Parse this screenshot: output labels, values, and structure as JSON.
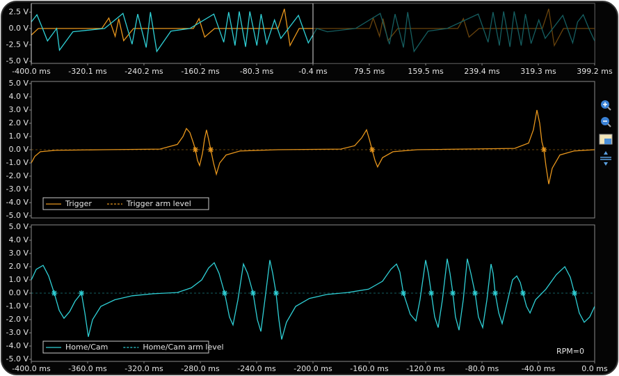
{
  "chart_data": [
    {
      "type": "line",
      "xlim": [
        -400.0,
        399.2
      ],
      "ylim": [
        -5.0,
        3.5
      ],
      "xticks": [
        {
          "value": -400.0,
          "label": "-400.0 ms"
        },
        {
          "value": -320.1,
          "label": "-320.1 ms"
        },
        {
          "value": -240.2,
          "label": "-240.2 ms"
        },
        {
          "value": -160.2,
          "label": "-160.2 ms"
        },
        {
          "value": -80.3,
          "label": "-80.3 ms"
        },
        {
          "value": -0.4,
          "label": "-0.4 ms"
        },
        {
          "value": 79.5,
          "label": "79.5 ms"
        },
        {
          "value": 159.5,
          "label": "159.5 ms"
        },
        {
          "value": 239.4,
          "label": "239.4 ms"
        },
        {
          "value": 319.3,
          "label": "319.3 ms"
        },
        {
          "value": 399.2,
          "label": "399.2 ms"
        }
      ],
      "yticks": [
        {
          "value": 2.5,
          "label": "2.5 V"
        },
        {
          "value": 0.0,
          "label": "0.0 V"
        },
        {
          "value": -2.5,
          "label": "-2.5 V"
        },
        {
          "value": -5.0,
          "label": "-5.0 V"
        }
      ],
      "zoom_window": [
        -400.0,
        -0.4
      ],
      "series": [
        {
          "color": "#e8961c",
          "x": [
            -400,
            -390,
            -300,
            -290,
            -281,
            -276,
            -269,
            -255,
            -170,
            -162,
            -154,
            -140,
            -50,
            -41,
            -33,
            -20,
            80,
            85,
            94,
            99,
            106,
            120,
            205,
            213,
            221,
            235,
            325,
            334,
            342,
            355,
            399.2
          ],
          "values": [
            -1,
            0,
            0,
            1.6,
            -1.2,
            1.5,
            -1.85,
            0,
            0,
            1.5,
            -1.3,
            0,
            0,
            3.0,
            -2.6,
            0,
            0,
            1.6,
            -1.2,
            1.5,
            -1.85,
            0,
            0,
            1.5,
            -1.3,
            0,
            0,
            3.0,
            -2.6,
            0,
            0
          ]
        },
        {
          "color": "#2fd0d6",
          "x": [
            -400,
            -392,
            -384,
            -377,
            -364,
            -360,
            -341,
            -296,
            -270,
            -257,
            -249,
            -237,
            -231,
            -222,
            -202,
            -175,
            -141,
            -127,
            -120,
            -111,
            -105,
            -96,
            -90,
            -80,
            -74,
            -66,
            -55,
            -46,
            -21,
            -7,
            5,
            20,
            60,
            95,
            108,
            116,
            128,
            134,
            143,
            163,
            190,
            234,
            248,
            255,
            264,
            270,
            279,
            285,
            295,
            301,
            309,
            320,
            329,
            354,
            368,
            375,
            383,
            391,
            399.2
          ],
          "values": [
            1,
            2.1,
            0,
            -1.9,
            0,
            -3.3,
            -0.5,
            0,
            2.3,
            -2.4,
            2.2,
            -2.9,
            2.5,
            -3.5,
            -0.4,
            0,
            2.2,
            -2.1,
            2.5,
            -2.6,
            2.6,
            -2.8,
            2.6,
            -2.6,
            2.2,
            -2.3,
            1.3,
            -1.5,
            2.0,
            -2.2,
            0,
            -0.5,
            0,
            2.3,
            -2.4,
            2.2,
            -2.9,
            2.5,
            -3.5,
            -0.4,
            0,
            2.2,
            -2.1,
            2.5,
            -2.6,
            2.6,
            -2.8,
            2.6,
            -2.6,
            2.2,
            -2.3,
            1.3,
            -1.5,
            2.0,
            -2.2,
            1.0,
            2.1,
            0,
            -1.9
          ]
        }
      ]
    },
    {
      "type": "line",
      "xlim": [
        -400.0,
        0.0
      ],
      "ylim": [
        -5.0,
        5.0
      ],
      "yticks": [
        {
          "value": 5.0,
          "label": "5.0 V"
        },
        {
          "value": 4.0,
          "label": "4.0 V"
        },
        {
          "value": 3.0,
          "label": "3.0 V"
        },
        {
          "value": 2.0,
          "label": "2.0 V"
        },
        {
          "value": 1.0,
          "label": "1.0 V"
        },
        {
          "value": 0.0,
          "label": "0.0 V"
        },
        {
          "value": -1.0,
          "label": "-1.0 V"
        },
        {
          "value": -2.0,
          "label": "-2.0 V"
        },
        {
          "value": -3.0,
          "label": "-3.0 V"
        },
        {
          "value": -4.0,
          "label": "-4.0 V"
        },
        {
          "value": -5.0,
          "label": "-5.0 V"
        }
      ],
      "legend": "lower left",
      "series": [
        {
          "name": "Trigger",
          "color": "#e8961c",
          "x": [
            -400.0,
            -397.5,
            -393.6,
            -382.7,
            -348.1,
            -308.6,
            -296.3,
            -292.3,
            -289.9,
            -287.4,
            -284.9,
            -283.5,
            -282.0,
            -280.5,
            -278.5,
            -277.0,
            -275.6,
            -274.1,
            -272.6,
            -270.6,
            -268.6,
            -266.2,
            -261.7,
            -251.9,
            -224.7,
            -180.2,
            -170.4,
            -165.4,
            -162.0,
            -160.0,
            -158.0,
            -156.0,
            -154.1,
            -150.6,
            -143.2,
            -125.9,
            -56.8,
            -46.9,
            -43.5,
            -41.0,
            -39.0,
            -37.5,
            -36.0,
            -34.6,
            -32.6,
            -30.1,
            -24.7,
            -14.8,
            0.0
          ],
          "values": [
            -1.0,
            -0.5,
            -0.15,
            -0.05,
            0,
            0.05,
            0.4,
            1.0,
            1.6,
            1.3,
            0.5,
            0,
            -0.8,
            -1.2,
            -0.3,
            0.8,
            1.5,
            0.8,
            0,
            -1.0,
            -1.85,
            -1.0,
            -0.4,
            -0.1,
            0,
            0.05,
            0.3,
            0.9,
            1.5,
            0.8,
            0,
            -0.8,
            -1.3,
            -0.6,
            -0.15,
            0,
            0.1,
            0.5,
            1.5,
            3.0,
            2.0,
            0.6,
            0,
            -1.2,
            -2.6,
            -1.4,
            -0.4,
            -0.1,
            0
          ]
        },
        {
          "name": "Trigger arm level",
          "color": "#e8961c",
          "dash": true,
          "x": [
            -400.0,
            0.0
          ],
          "values": [
            0,
            0
          ]
        }
      ],
      "edges": {
        "color": "#e8961c",
        "x": [
          -283.5,
          -272.6,
          -158.0,
          -36.0
        ],
        "values": [
          0,
          0,
          0,
          0
        ]
      }
    },
    {
      "type": "line",
      "xlim": [
        -400.0,
        0.0
      ],
      "ylim": [
        -5.0,
        5.0
      ],
      "xticks": [
        {
          "value": -400.0,
          "label": "-400.0 ms"
        },
        {
          "value": -360.0,
          "label": "-360.0 ms"
        },
        {
          "value": -320.0,
          "label": "-320.0 ms"
        },
        {
          "value": -280.0,
          "label": "-280.0 ms"
        },
        {
          "value": -240.0,
          "label": "-240.0 ms"
        },
        {
          "value": -200.0,
          "label": "-200.0 ms"
        },
        {
          "value": -160.0,
          "label": "-160.0 ms"
        },
        {
          "value": -120.0,
          "label": "-120.0 ms"
        },
        {
          "value": -80.0,
          "label": "-80.0 ms"
        },
        {
          "value": -40.0,
          "label": "-40.0 ms"
        },
        {
          "value": 0.0,
          "label": "0.0 ms"
        }
      ],
      "yticks": [
        {
          "value": 5.0,
          "label": "5.0 V"
        },
        {
          "value": 4.0,
          "label": "4.0 V"
        },
        {
          "value": 3.0,
          "label": "3.0 V"
        },
        {
          "value": 2.0,
          "label": "2.0 V"
        },
        {
          "value": 1.0,
          "label": "1.0 V"
        },
        {
          "value": 0.0,
          "label": "0.0 V"
        },
        {
          "value": -1.0,
          "label": "-1.0 V"
        },
        {
          "value": -2.0,
          "label": "-2.0 V"
        },
        {
          "value": -3.0,
          "label": "-3.0 V"
        },
        {
          "value": -4.0,
          "label": "-4.0 V"
        },
        {
          "value": -5.0,
          "label": "-5.0 V"
        }
      ],
      "legend": "lower left",
      "annotation": "RPM=0",
      "series": [
        {
          "name": "Home/Cam",
          "color": "#2fd0d6",
          "x": [
            -400.0,
            -396.5,
            -391.6,
            -387.7,
            -383.7,
            -380.2,
            -376.8,
            -372.8,
            -368.9,
            -364.4,
            -362.0,
            -359.5,
            -356.5,
            -350.6,
            -340.7,
            -328.4,
            -313.6,
            -296.3,
            -286.4,
            -279.0,
            -274.1,
            -270.1,
            -266.7,
            -262.7,
            -259.3,
            -256.8,
            -253.3,
            -249.4,
            -246.4,
            -242.5,
            -239.5,
            -237.0,
            -234.1,
            -230.6,
            -228.6,
            -226.2,
            -224.2,
            -222.2,
            -218.8,
            -212.3,
            -202.5,
            -190.1,
            -175.3,
            -160.5,
            -150.6,
            -144.7,
            -140.7,
            -138.3,
            -135.8,
            -130.9,
            -126.9,
            -124.0,
            -120.0,
            -118.0,
            -116.0,
            -113.6,
            -111.1,
            -108.1,
            -104.7,
            -102.7,
            -100.7,
            -98.8,
            -96.3,
            -93.3,
            -90.4,
            -87.9,
            -84.9,
            -82.5,
            -79.5,
            -76.5,
            -73.6,
            -72.1,
            -70.6,
            -68.1,
            -65.7,
            -61.7,
            -58.3,
            -55.3,
            -52.8,
            -50.9,
            -48.4,
            -45.9,
            -42.0,
            -34.6,
            -27.2,
            -21.2,
            -17.3,
            -14.3,
            -10.9,
            -7.4,
            -3.5,
            0.0
          ],
          "values": [
            1.0,
            1.8,
            2.1,
            1.3,
            0,
            -1.3,
            -1.9,
            -1.4,
            -0.6,
            0,
            -1.5,
            -3.3,
            -2.0,
            -1.0,
            -0.5,
            -0.2,
            -0.05,
            0.05,
            0.4,
            1.0,
            1.9,
            2.3,
            1.5,
            0,
            -1.8,
            -2.4,
            -0.5,
            2.2,
            1.5,
            0,
            -2.0,
            -2.9,
            -0.5,
            2.5,
            1.5,
            0,
            -2.0,
            -3.5,
            -2.2,
            -1.0,
            -0.4,
            -0.1,
            0.05,
            0.3,
            0.9,
            1.8,
            2.2,
            1.6,
            0,
            -1.6,
            -2.1,
            -0.5,
            2.5,
            1.5,
            0,
            -1.8,
            -2.6,
            -0.5,
            2.6,
            1.5,
            0,
            -1.8,
            -2.8,
            -0.5,
            2.6,
            1.5,
            0,
            -1.8,
            -2.6,
            -0.5,
            2.2,
            1.5,
            0,
            -1.5,
            -2.3,
            -0.5,
            1.0,
            1.3,
            0.8,
            0,
            -1.0,
            -1.5,
            -0.5,
            0.3,
            1.4,
            2.0,
            1.2,
            0,
            -1.5,
            -2.2,
            -1.8,
            -1.0
          ]
        },
        {
          "name": "Home/Cam arm level",
          "color": "#2fd0d6",
          "dash": true,
          "x": [
            -400.0,
            0.0
          ],
          "values": [
            0,
            0
          ]
        }
      ],
      "edges": {
        "color": "#2fd0d6",
        "x": [
          -383.7,
          -364.4,
          -262.7,
          -242.5,
          -226.2,
          -135.8,
          -116.0,
          -100.7,
          -84.9,
          -70.6,
          -50.9,
          -14.3
        ],
        "values": [
          0,
          0,
          0,
          0,
          0,
          0,
          0,
          0,
          0,
          0,
          0,
          0
        ]
      }
    }
  ]
}
